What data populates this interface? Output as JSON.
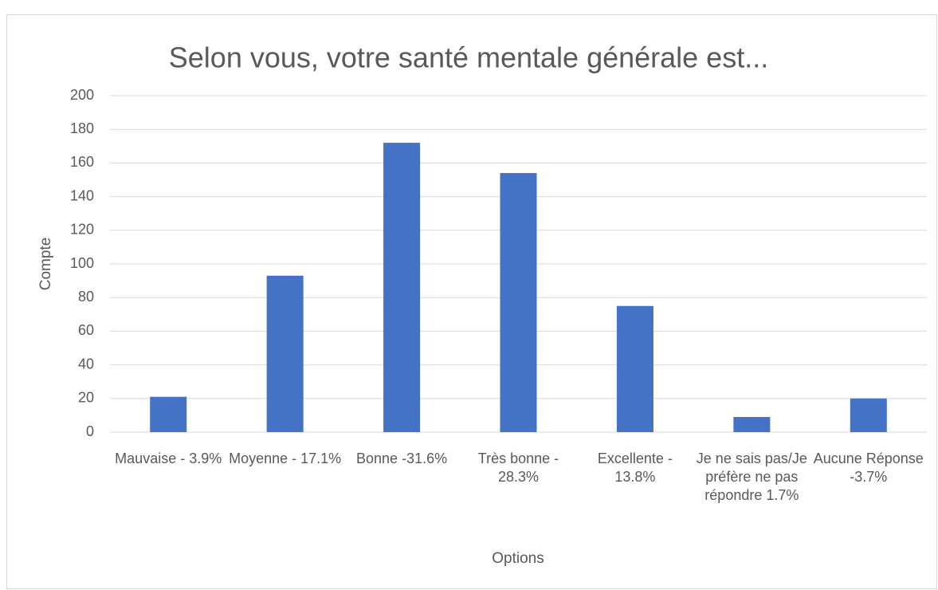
{
  "chart_data": {
    "type": "bar",
    "title": "Selon vous, votre santé mentale générale est...",
    "x_label": "Options",
    "y_label": "Compte",
    "categories": [
      "Mauvaise - 3.9%",
      "Moyenne - 17.1%",
      "Bonne -31.6%",
      "Très bonne - 28.3%",
      "Excellente - 13.8%",
      "Je ne sais pas/Je préfère ne pas répondre 1.7%",
      "Aucune Réponse -3.7%"
    ],
    "values": [
      21,
      93,
      172,
      154,
      75,
      9,
      20
    ],
    "color": "#4472c4",
    "ylim": [
      0,
      200
    ],
    "yticks": [
      0,
      20,
      40,
      60,
      80,
      100,
      120,
      140,
      160,
      180,
      200
    ],
    "grid": true
  }
}
